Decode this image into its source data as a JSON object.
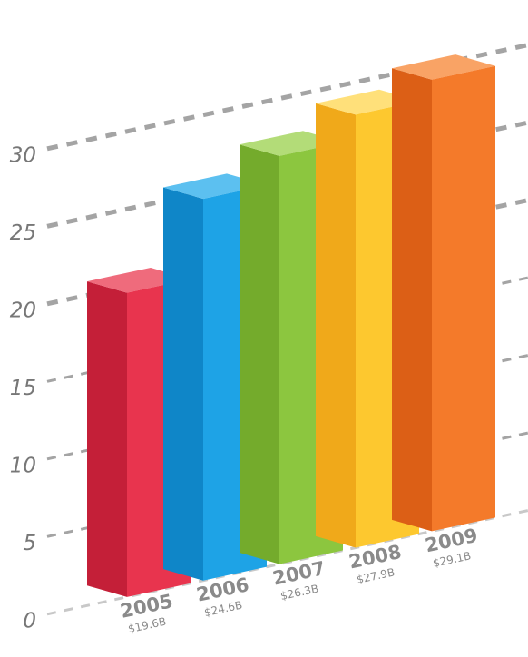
{
  "chart_data": {
    "type": "bar",
    "categories": [
      "2005",
      "2006",
      "2007",
      "2008",
      "2009"
    ],
    "values": [
      19.6,
      24.6,
      26.3,
      27.9,
      29.1
    ],
    "value_labels": [
      "$19.6B",
      "$24.6B",
      "$26.3B",
      "$27.9B",
      "$29.1B"
    ],
    "y_ticks": [
      "0",
      "5",
      "10",
      "15",
      "20",
      "25",
      "30"
    ],
    "ylim": [
      0,
      30
    ],
    "grid": true,
    "title": "",
    "xlabel": "",
    "ylabel": ""
  },
  "colors": {
    "bars": [
      {
        "front": "#e8344e",
        "side": "#c41f38",
        "top": "#ef6b7c"
      },
      {
        "front": "#1ea3e6",
        "side": "#0f86c8",
        "top": "#5cc0f0"
      },
      {
        "front": "#8cc63f",
        "side": "#74ab2c",
        "top": "#b3dc78"
      },
      {
        "front": "#fdc82f",
        "side": "#f0a91a",
        "top": "#ffe07a"
      },
      {
        "front": "#f47a2a",
        "side": "#dc5f16",
        "top": "#f9a365"
      }
    ],
    "grid": "#9a9a9a",
    "text": "#808080"
  }
}
